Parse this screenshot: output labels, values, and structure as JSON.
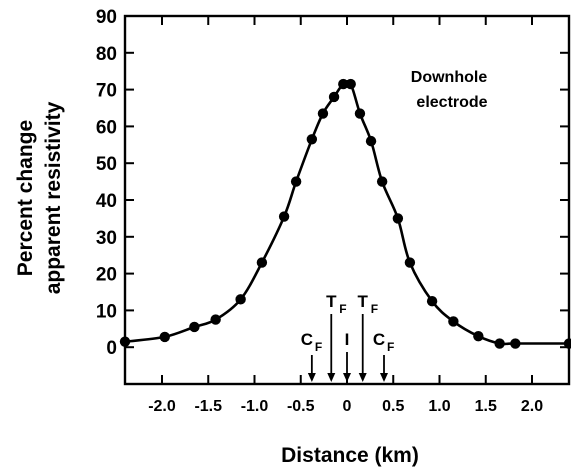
{
  "chart_data": {
    "type": "line",
    "title": "",
    "xlabel": "Distance (km)",
    "ylabel_lines": [
      "Percent change",
      "apparent resistivity"
    ],
    "xlim": [
      -2.4,
      2.4
    ],
    "ylim": [
      -10,
      90
    ],
    "xticks": [
      -2.0,
      -1.5,
      -1.0,
      -0.5,
      0,
      0.5,
      1.0,
      1.5,
      2.0
    ],
    "xtick_labels": [
      "-2.0",
      "-1.5",
      "-1.0",
      "-0.5",
      "0",
      "0.5",
      "1.0",
      "1.5",
      "2.0"
    ],
    "yticks": [
      0,
      10,
      20,
      30,
      40,
      50,
      60,
      70,
      80,
      90
    ],
    "ytick_labels": [
      "0",
      "10",
      "20",
      "30",
      "40",
      "50",
      "60",
      "70",
      "80",
      "90"
    ],
    "annotation": [
      "Downhole",
      "electrode"
    ],
    "series": [
      {
        "x": [
          -2.4,
          -1.97,
          -1.65,
          -1.42,
          -1.15,
          -0.92,
          -0.68,
          -0.55,
          -0.38,
          -0.26,
          -0.14,
          -0.04,
          0.04,
          0.14,
          0.26,
          0.38,
          0.55,
          0.68,
          0.92,
          1.15,
          1.42,
          1.65,
          1.82,
          2.4
        ],
        "y": [
          1.5,
          2.8,
          5.5,
          7.5,
          13,
          23,
          35.5,
          45,
          56.5,
          63.5,
          68,
          71.5,
          71.5,
          63.5,
          56,
          45,
          35,
          23,
          12.5,
          7,
          3,
          1,
          1,
          1
        ]
      }
    ],
    "markers": [
      {
        "letter": "C",
        "sub": "F",
        "x": -0.38
      },
      {
        "letter": "T",
        "sub": "F",
        "x": -0.17
      },
      {
        "letter": "I",
        "sub": "",
        "x": 0
      },
      {
        "letter": "T",
        "sub": "F",
        "x": 0.17
      },
      {
        "letter": "C",
        "sub": "F",
        "x": 0.4
      }
    ]
  }
}
